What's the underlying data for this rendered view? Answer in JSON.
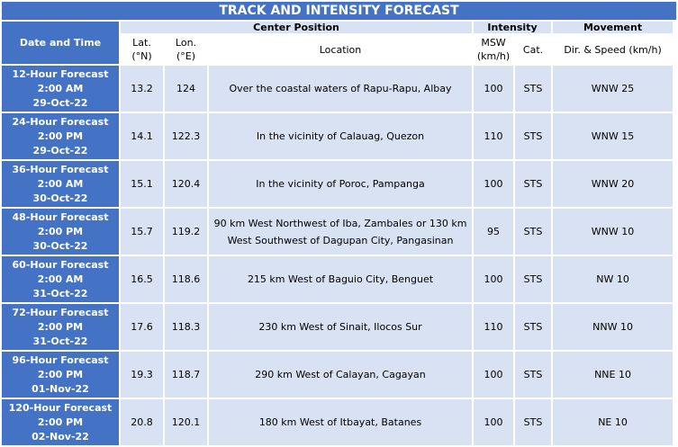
{
  "title": "TRACK AND INTENSITY FORECAST",
  "headers": {
    "date_time": "Date and Time",
    "center_position": "Center Position",
    "intensity": "Intensity",
    "movement": "Movement",
    "lat": "Lat.",
    "lat_unit": "(°N)",
    "lon": "Lon.",
    "lon_unit": "(°E)",
    "location": "Location",
    "msw": "MSW",
    "msw_unit": "(km/h)",
    "cat": "Cat.",
    "dir_speed": "Dir. & Speed (km/h)"
  },
  "rows": [
    {
      "forecast": "12-Hour Forecast",
      "time": "2:00 AM",
      "date": "29-Oct-22",
      "lat": "13.2",
      "lon": "124",
      "location": "Over the coastal waters of Rapu-Rapu, Albay",
      "msw": "100",
      "cat": "STS",
      "movement": "WNW 25"
    },
    {
      "forecast": "24-Hour Forecast",
      "time": "2:00 PM",
      "date": "29-Oct-22",
      "lat": "14.1",
      "lon": "122.3",
      "location": "In the vicinity of Calauag, Quezon",
      "msw": "110",
      "cat": "STS",
      "movement": "WNW 15"
    },
    {
      "forecast": "36-Hour Forecast",
      "time": "2:00 AM",
      "date": "30-Oct-22",
      "lat": "15.1",
      "lon": "120.4",
      "location": "In the vicinity of Poroc, Pampanga",
      "msw": "100",
      "cat": "STS",
      "movement": "WNW 20"
    },
    {
      "forecast": "48-Hour Forecast",
      "time": "2:00 PM",
      "date": "30-Oct-22",
      "lat": "15.7",
      "lon": "119.2",
      "location": "90 km West Northwest of Iba, Zambales or 130 km West Southwest of Dagupan City, Pangasinan",
      "msw": "95",
      "cat": "STS",
      "movement": "WNW 10"
    },
    {
      "forecast": "60-Hour Forecast",
      "time": "2:00 AM",
      "date": "31-Oct-22",
      "lat": "16.5",
      "lon": "118.6",
      "location": "215 km West of Baguio City, Benguet",
      "msw": "100",
      "cat": "STS",
      "movement": "NW 10"
    },
    {
      "forecast": "72-Hour Forecast",
      "time": "2:00 PM",
      "date": "31-Oct-22",
      "lat": "17.6",
      "lon": "118.3",
      "location": "230 km West of Sinait, Ilocos Sur",
      "msw": "110",
      "cat": "STS",
      "movement": "NNW 10"
    },
    {
      "forecast": "96-Hour Forecast",
      "time": "2:00 PM",
      "date": "01-Nov-22",
      "lat": "19.3",
      "lon": "118.7",
      "location": "290 km West of Calayan, Cagayan",
      "msw": "100",
      "cat": "STS",
      "movement": "NNE 10"
    },
    {
      "forecast": "120-Hour Forecast",
      "time": "2:00 PM",
      "date": "02-Nov-22",
      "lat": "20.8",
      "lon": "120.1",
      "location": "180 km West of Itbayat, Batanes",
      "msw": "100",
      "cat": "STS",
      "movement": "NE 10"
    }
  ]
}
